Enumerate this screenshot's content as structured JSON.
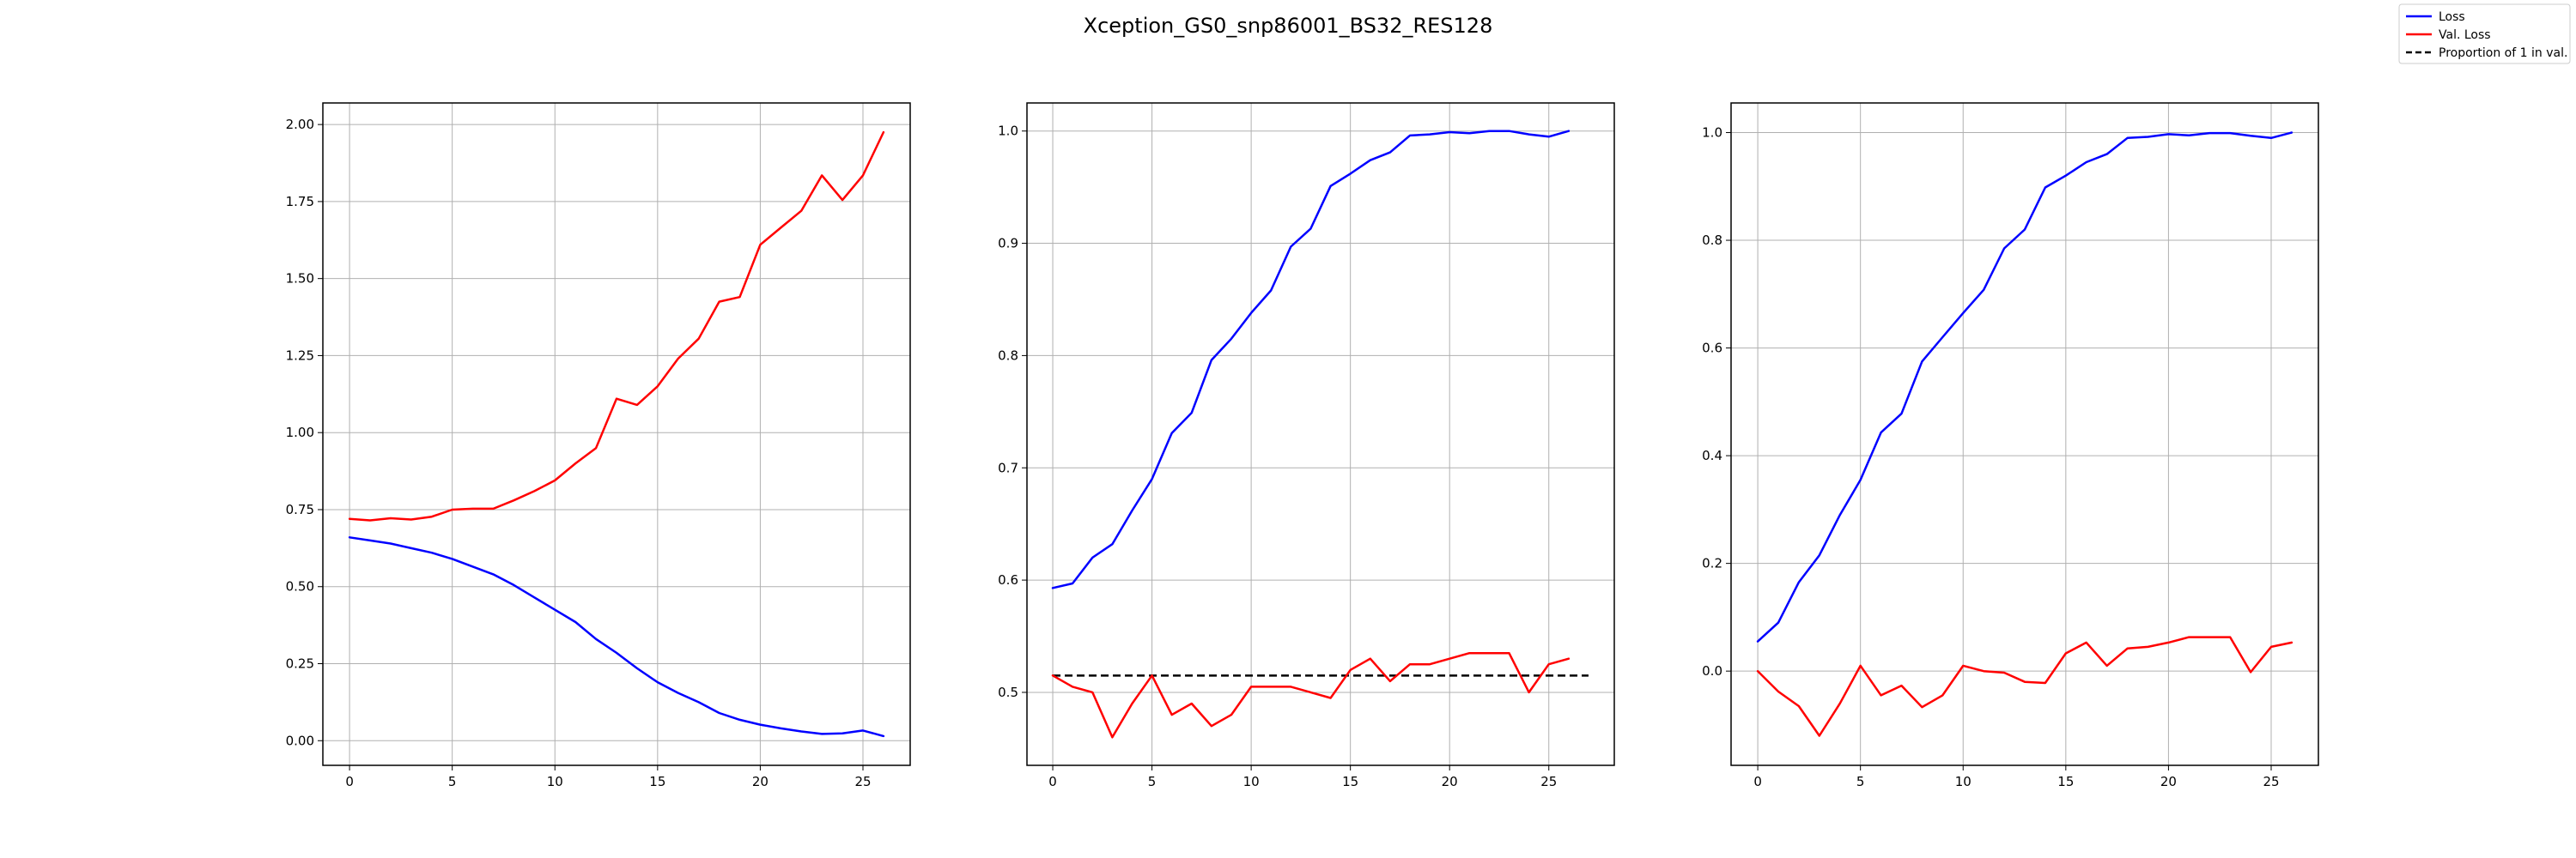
{
  "figure": {
    "title": "Xception_GS0_snp86001_BS32_RES128"
  },
  "legend": {
    "placement": "top-right",
    "items": [
      {
        "label": "Loss",
        "color": "#0000ff",
        "style": "solid"
      },
      {
        "label": "Val. Loss",
        "color": "#ff0000",
        "style": "solid"
      },
      {
        "label": "Proportion of 1 in val.",
        "color": "#000000",
        "style": "dashed"
      }
    ]
  },
  "chart_data": [
    {
      "type": "line",
      "title": "",
      "xlabel": "",
      "ylabel": "",
      "grid": true,
      "xlim": [
        -1.3,
        27.3
      ],
      "ylim": [
        -0.08,
        2.07
      ],
      "xticks": [
        0,
        5,
        10,
        15,
        20,
        25
      ],
      "xtick_labels": [
        "0",
        "5",
        "10",
        "15",
        "20",
        "25"
      ],
      "yticks": [
        0,
        0.25,
        0.5,
        0.75,
        1.0,
        1.25,
        1.5,
        1.75,
        2.0
      ],
      "ytick_labels": [
        "0.00",
        "0.25",
        "0.50",
        "0.75",
        "1.00",
        "1.25",
        "1.50",
        "1.75",
        "2.00"
      ],
      "x": [
        0,
        1,
        2,
        3,
        4,
        5,
        6,
        7,
        8,
        9,
        10,
        11,
        12,
        13,
        14,
        15,
        16,
        17,
        18,
        19,
        20,
        21,
        22,
        23,
        24,
        25,
        26
      ],
      "series": [
        {
          "color": "#0000ff",
          "style": "solid",
          "values": [
            0.66,
            0.65,
            0.64,
            0.625,
            0.61,
            0.59,
            0.565,
            0.54,
            0.505,
            0.465,
            0.425,
            0.385,
            0.33,
            0.285,
            0.235,
            0.19,
            0.155,
            0.125,
            0.09,
            0.068,
            0.052,
            0.04,
            0.03,
            0.022,
            0.024,
            0.033,
            0.015
          ]
        },
        {
          "color": "#ff0000",
          "style": "solid",
          "values": [
            0.72,
            0.715,
            0.722,
            0.718,
            0.727,
            0.75,
            0.753,
            0.753,
            0.78,
            0.81,
            0.845,
            0.9,
            0.95,
            1.11,
            1.09,
            1.15,
            1.24,
            1.305,
            1.425,
            1.44,
            1.61,
            1.665,
            1.72,
            1.835,
            1.755,
            1.835,
            1.975
          ]
        }
      ]
    },
    {
      "type": "line",
      "title": "",
      "xlabel": "",
      "ylabel": "",
      "grid": true,
      "xlim": [
        -1.3,
        28.3
      ],
      "ylim": [
        0.435,
        1.025
      ],
      "xticks": [
        0,
        5,
        10,
        15,
        20,
        25
      ],
      "xtick_labels": [
        "0",
        "5",
        "10",
        "15",
        "20",
        "25"
      ],
      "yticks": [
        0.5,
        0.6,
        0.7,
        0.8,
        0.9,
        1.0
      ],
      "ytick_labels": [
        "0.5",
        "0.6",
        "0.7",
        "0.8",
        "0.9",
        "1.0"
      ],
      "x": [
        0,
        1,
        2,
        3,
        4,
        5,
        6,
        7,
        8,
        9,
        10,
        11,
        12,
        13,
        14,
        15,
        16,
        17,
        18,
        19,
        20,
        21,
        22,
        23,
        24,
        25,
        26
      ],
      "series": [
        {
          "color": "#0000ff",
          "style": "solid",
          "values": [
            0.593,
            0.597,
            0.62,
            0.632,
            0.662,
            0.69,
            0.731,
            0.749,
            0.796,
            0.815,
            0.838,
            0.858,
            0.897,
            0.913,
            0.951,
            0.962,
            0.974,
            0.981,
            0.996,
            0.997,
            0.999,
            0.998,
            1.0,
            1.0,
            0.997,
            0.995,
            1.0
          ]
        },
        {
          "color": "#ff0000",
          "style": "solid",
          "values": [
            0.515,
            0.505,
            0.5,
            0.46,
            0.49,
            0.515,
            0.48,
            0.49,
            0.47,
            0.48,
            0.505,
            0.505,
            0.505,
            0.5,
            0.495,
            0.52,
            0.53,
            0.51,
            0.525,
            0.525,
            0.53,
            0.535,
            0.535,
            0.535,
            0.5,
            0.525,
            0.53
          ]
        }
      ],
      "reference_lines": [
        {
          "color": "#000000",
          "style": "dashed",
          "y": 0.515,
          "x_from": 0,
          "x_to": 27
        }
      ]
    },
    {
      "type": "line",
      "title": "",
      "xlabel": "",
      "ylabel": "",
      "grid": true,
      "xlim": [
        -1.3,
        27.3
      ],
      "ylim": [
        -0.175,
        1.055
      ],
      "xticks": [
        0,
        5,
        10,
        15,
        20,
        25
      ],
      "xtick_labels": [
        "0",
        "5",
        "10",
        "15",
        "20",
        "25"
      ],
      "yticks": [
        0,
        0.2,
        0.4,
        0.6,
        0.8,
        1.0
      ],
      "ytick_labels": [
        "0.0",
        "0.2",
        "0.4",
        "0.6",
        "0.8",
        "1.0"
      ],
      "x": [
        0,
        1,
        2,
        3,
        4,
        5,
        6,
        7,
        8,
        9,
        10,
        11,
        12,
        13,
        14,
        15,
        16,
        17,
        18,
        19,
        20,
        21,
        22,
        23,
        24,
        25,
        26
      ],
      "series": [
        {
          "color": "#0000ff",
          "style": "solid",
          "values": [
            0.055,
            0.09,
            0.165,
            0.215,
            0.29,
            0.355,
            0.443,
            0.478,
            0.575,
            0.62,
            0.665,
            0.708,
            0.785,
            0.82,
            0.898,
            0.92,
            0.945,
            0.96,
            0.99,
            0.992,
            0.997,
            0.995,
            0.999,
            0.999,
            0.994,
            0.99,
            1.0
          ]
        },
        {
          "color": "#ff0000",
          "style": "solid",
          "values": [
            0.0,
            -0.038,
            -0.065,
            -0.12,
            -0.06,
            0.01,
            -0.045,
            -0.027,
            -0.067,
            -0.045,
            0.01,
            0.0,
            -0.003,
            -0.02,
            -0.022,
            0.033,
            0.053,
            0.01,
            0.042,
            0.045,
            0.053,
            0.063,
            0.063,
            0.063,
            -0.002,
            0.045,
            0.053
          ]
        }
      ]
    }
  ]
}
